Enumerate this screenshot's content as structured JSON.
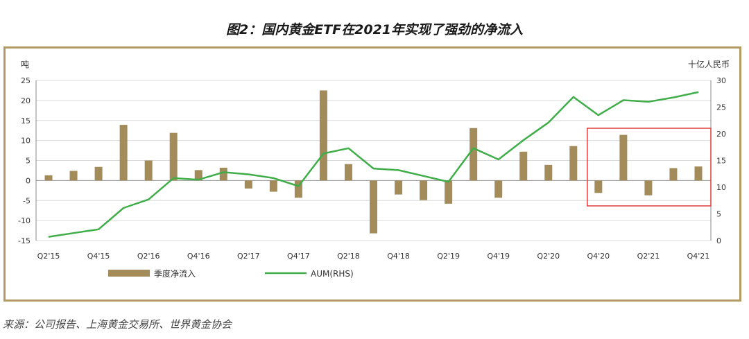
{
  "title": "图2：国内黄金ETF在2021年实现了强劲的净流入",
  "source": "来源：公司报告、上海黄金交易所、世界黄金协会",
  "chart_data": {
    "type": "bar+line",
    "left_unit": "吨",
    "right_unit": "十亿人民币",
    "y_left": {
      "min": -15,
      "max": 25,
      "ticks": [
        25,
        20,
        15,
        10,
        5,
        0,
        -5,
        -10,
        -15
      ]
    },
    "y_right": {
      "min": 0,
      "max": 30,
      "ticks": [
        30,
        25,
        20,
        15,
        10,
        5,
        0
      ]
    },
    "categories": [
      "Q2'15",
      "Q3'15",
      "Q4'15",
      "Q1'16",
      "Q2'16",
      "Q3'16",
      "Q4'16",
      "Q1'17",
      "Q2'17",
      "Q3'17",
      "Q4'17",
      "Q1'18",
      "Q2'18",
      "Q3'18",
      "Q4'18",
      "Q1'19",
      "Q2'19",
      "Q3'19",
      "Q4'19",
      "Q1'20",
      "Q2'20",
      "Q3'20",
      "Q4'20",
      "Q1'21",
      "Q2'21",
      "Q3'21",
      "Q4'21"
    ],
    "tick_labels": [
      "Q2'15",
      "",
      "Q4'15",
      "",
      "Q2'16",
      "",
      "Q4'16",
      "",
      "Q2'17",
      "",
      "Q4'17",
      "",
      "Q2'18",
      "",
      "Q4'18",
      "",
      "Q2'19",
      "",
      "Q4'19",
      "",
      "Q2'20",
      "",
      "Q4'20",
      "",
      "Q2'21",
      "",
      "Q4'21"
    ],
    "series": [
      {
        "name": "季度净流入",
        "type": "bar",
        "axis": "left",
        "color": "#a48c5a",
        "values": [
          1.3,
          2.4,
          3.4,
          13.9,
          5.0,
          11.9,
          2.6,
          3.2,
          -2.0,
          -2.8,
          -4.3,
          22.5,
          4.1,
          -13.2,
          -3.5,
          -4.9,
          -5.8,
          13.1,
          -4.3,
          7.2,
          3.9,
          8.6,
          -3.1,
          11.4,
          -3.7,
          3.1,
          3.5
        ]
      },
      {
        "name": "AUM(RHS)",
        "type": "line",
        "axis": "right",
        "color": "#3fae49",
        "values": [
          0.7,
          1.4,
          2.1,
          6.1,
          7.7,
          11.7,
          11.4,
          12.8,
          12.4,
          11.7,
          10.2,
          16.3,
          17.3,
          13.5,
          13.2,
          12.1,
          11.0,
          17.3,
          15.2,
          18.8,
          22.1,
          26.9,
          23.5,
          26.3,
          26.0,
          26.8,
          27.8
        ]
      }
    ],
    "highlight": {
      "from": "Q4'20",
      "to": "Q4'21",
      "color": "#e03a3a"
    },
    "legend_position": "bottom",
    "grid": true
  }
}
